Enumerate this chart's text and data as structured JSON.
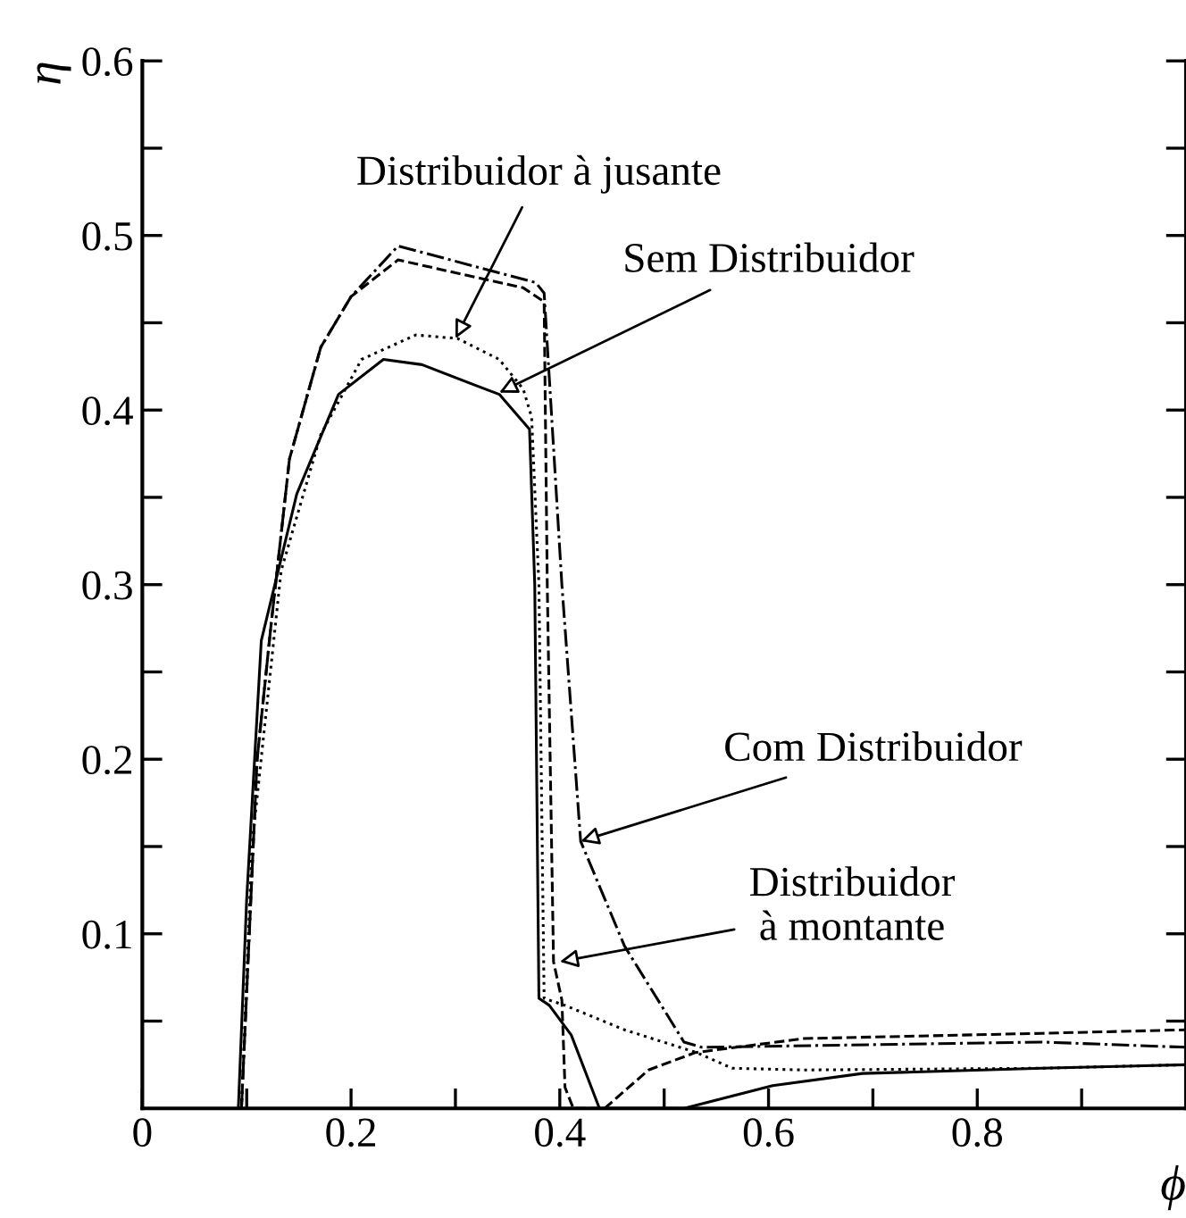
{
  "chart_data": {
    "type": "line",
    "xlabel": "ϕ",
    "ylabel": "η",
    "xlim": [
      0,
      1.0
    ],
    "ylim": [
      0,
      0.6
    ],
    "xticks": [
      0,
      {
        "value": 0.1,
        "label": null
      },
      0.2,
      {
        "value": 0.3,
        "label": null
      },
      0.4,
      {
        "value": 0.5,
        "label": null
      },
      0.6,
      {
        "value": 0.7,
        "label": null
      },
      0.8,
      {
        "value": 0.9,
        "label": null
      }
    ],
    "yticks": [
      {
        "value": 0.05,
        "label": null
      },
      0.1,
      {
        "value": 0.15,
        "label": null
      },
      0.2,
      {
        "value": 0.25,
        "label": null
      },
      0.3,
      {
        "value": 0.35,
        "label": null
      },
      0.4,
      {
        "value": 0.45,
        "label": null
      },
      0.5,
      {
        "value": 0.55,
        "label": null
      },
      0.6
    ],
    "grid": false,
    "legend": false,
    "marker": "none",
    "series": [
      {
        "color": "#000000",
        "line_style": "solid",
        "x": [
          0.092,
          0.1,
          0.114,
          0.148,
          0.188,
          0.231,
          0.268,
          0.32,
          0.342,
          0.371,
          0.376,
          0.38,
          0.39,
          0.411,
          0.438,
          0.519,
          0.604,
          0.69,
          0.862,
          1.0
        ],
        "values": [
          0,
          0.12,
          0.268,
          0.352,
          0.409,
          0.429,
          0.426,
          0.414,
          0.409,
          0.389,
          0.3,
          0.063,
          0.059,
          0.042,
          0,
          0,
          0.013,
          0.02,
          0.023,
          0.025
        ]
      },
      {
        "color": "#000000",
        "line_style": "dotted",
        "x": [
          0.095,
          0.105,
          0.133,
          0.171,
          0.21,
          0.262,
          0.302,
          0.342,
          0.365,
          0.373,
          0.38,
          0.385,
          0.405,
          0.462,
          0.531,
          0.565,
          0.634,
          0.862,
          1.0
        ],
        "values": [
          0,
          0.15,
          0.308,
          0.386,
          0.429,
          0.443,
          0.441,
          0.429,
          0.412,
          0.396,
          0.3,
          0.063,
          0.059,
          0.045,
          0.032,
          0.023,
          0.022,
          0.023,
          0.025
        ]
      },
      {
        "color": "#000000",
        "line_style": "dashed",
        "x": [
          0.095,
          0.11,
          0.123,
          0.141,
          0.171,
          0.2,
          0.245,
          0.365,
          0.385,
          0.388,
          0.394,
          0.402,
          0.405,
          0.413,
          0.443,
          0.485,
          0.53,
          0.634,
          0.862,
          1.0
        ],
        "values": [
          0,
          0.2,
          0.275,
          0.372,
          0.436,
          0.465,
          0.486,
          0.47,
          0.462,
          0.3,
          0.084,
          0.062,
          0.012,
          0,
          0,
          0.022,
          0.032,
          0.04,
          0.043,
          0.045
        ]
      },
      {
        "color": "#000000",
        "line_style": "dashdot",
        "x": [
          0.095,
          0.11,
          0.123,
          0.141,
          0.171,
          0.2,
          0.245,
          0.377,
          0.385,
          0.402,
          0.42,
          0.462,
          0.519,
          0.536,
          0.862,
          1.0
        ],
        "values": [
          0,
          0.2,
          0.275,
          0.372,
          0.436,
          0.465,
          0.494,
          0.473,
          0.467,
          0.3,
          0.153,
          0.093,
          0.038,
          0.035,
          0.038,
          0.035
        ]
      }
    ],
    "annotations": [
      {
        "text": "Distribuidor à jusante",
        "x": 0.3,
        "y": 0.441
      },
      {
        "text": "Sem Distribuidor",
        "x": 0.342,
        "y": 0.41
      },
      {
        "text": "Com Distribuidor",
        "x": 0.42,
        "y": 0.153
      },
      {
        "text": "Distribuidor\nà montante",
        "x": 0.4,
        "y": 0.084
      }
    ]
  }
}
